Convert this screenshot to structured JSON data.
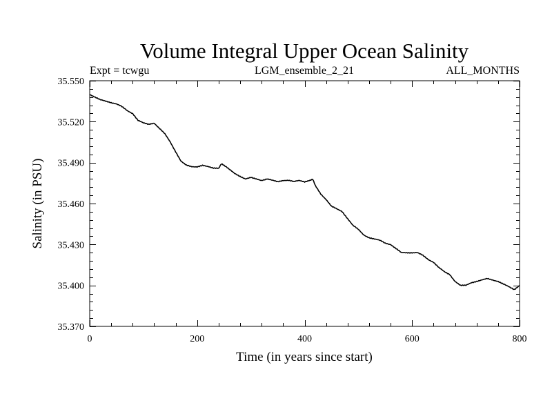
{
  "chart_data": {
    "type": "line",
    "title": "Volume Integral Upper Ocean Salinity",
    "subtitle_left": "Expt = tcwgu",
    "subtitle_center": "LGM_ensemble_2_21",
    "subtitle_right": "ALL_MONTHS",
    "xlabel": "Time (in years since start)",
    "ylabel": "Salinity (in PSU)",
    "xlim": [
      0,
      800
    ],
    "ylim": [
      35.37,
      35.55
    ],
    "x_ticks": [
      0,
      200,
      400,
      600,
      800
    ],
    "x_tick_labels": [
      "0",
      "200",
      "400",
      "600",
      "800"
    ],
    "y_ticks": [
      35.37,
      35.4,
      35.43,
      35.46,
      35.49,
      35.52,
      35.55
    ],
    "y_tick_labels": [
      "35.370",
      "35.400",
      "35.430",
      "35.460",
      "35.490",
      "35.520",
      "35.550"
    ],
    "grid": false,
    "series": [
      {
        "name": "salinity",
        "color": "#000000",
        "x": [
          0,
          10,
          20,
          30,
          40,
          50,
          60,
          70,
          80,
          90,
          100,
          110,
          120,
          130,
          140,
          150,
          160,
          170,
          180,
          190,
          200,
          210,
          220,
          230,
          240,
          245,
          250,
          260,
          270,
          280,
          290,
          300,
          310,
          320,
          330,
          340,
          350,
          360,
          370,
          380,
          390,
          400,
          410,
          415,
          420,
          430,
          440,
          450,
          460,
          470,
          480,
          490,
          500,
          510,
          520,
          530,
          540,
          550,
          560,
          570,
          580,
          590,
          600,
          610,
          620,
          630,
          640,
          650,
          660,
          670,
          680,
          690,
          700,
          710,
          720,
          730,
          740,
          750,
          760,
          770,
          780,
          790,
          800
        ],
        "values": [
          35.54,
          35.538,
          35.536,
          35.535,
          35.534,
          35.533,
          35.531,
          35.528,
          35.526,
          35.521,
          35.519,
          35.518,
          35.519,
          35.515,
          35.511,
          35.505,
          35.498,
          35.491,
          35.488,
          35.487,
          35.487,
          35.488,
          35.487,
          35.486,
          35.486,
          35.489,
          35.488,
          35.485,
          35.482,
          35.48,
          35.478,
          35.479,
          35.478,
          35.477,
          35.478,
          35.477,
          35.476,
          35.477,
          35.477,
          35.476,
          35.477,
          35.476,
          35.477,
          35.478,
          35.473,
          35.467,
          35.463,
          35.458,
          35.456,
          35.454,
          35.449,
          35.444,
          35.441,
          35.437,
          35.435,
          35.434,
          35.433,
          35.431,
          35.43,
          35.427,
          35.424,
          35.424,
          35.424,
          35.424,
          35.422,
          35.419,
          35.417,
          35.413,
          35.41,
          35.408,
          35.403,
          35.4,
          35.4,
          35.402,
          35.403,
          35.404,
          35.405,
          35.404,
          35.403,
          35.401,
          35.399,
          35.397,
          35.4
        ]
      }
    ]
  }
}
